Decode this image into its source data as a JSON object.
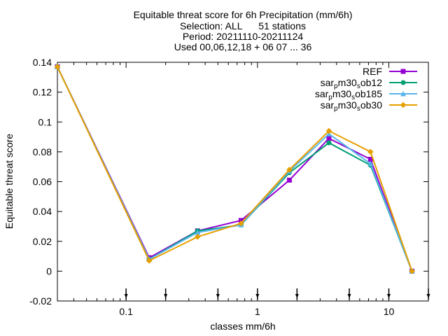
{
  "chart_data": {
    "type": "line",
    "title_lines": [
      "Equitable threat score  for 6h Precipitation (mm/6h)",
      "Selection: ALL      51 stations",
      "Period: 20211110-20211124",
      "Used 00,06,12,18 + 06 07 ... 36"
    ],
    "xlabel": "classes mm/6h",
    "ylabel": "Equitable threat score",
    "xscale": "log",
    "xlim": [
      0.03,
      20
    ],
    "ylim": [
      -0.02,
      0.14
    ],
    "xticks": [
      {
        "value": 0.1,
        "label": "0.1"
      },
      {
        "value": 1,
        "label": "1"
      },
      {
        "value": 10,
        "label": "10"
      }
    ],
    "yticks": [
      {
        "value": -0.02,
        "label": "-0.02"
      },
      {
        "value": 0,
        "label": "0"
      },
      {
        "value": 0.02,
        "label": "0.02"
      },
      {
        "value": 0.04,
        "label": "0.04"
      },
      {
        "value": 0.06,
        "label": "0.06"
      },
      {
        "value": 0.08,
        "label": "0.08"
      },
      {
        "value": 0.1,
        "label": "0.1"
      },
      {
        "value": 0.12,
        "label": "0.12"
      },
      {
        "value": 0.14,
        "label": "0.14"
      }
    ],
    "x": [
      0.03,
      0.15,
      0.35,
      0.75,
      1.75,
      3.5,
      7.25,
      15
    ],
    "threshold_marks_x": [
      0.1,
      0.2,
      0.5,
      1,
      2,
      5,
      10,
      20
    ],
    "legend_position": "top-right",
    "series": [
      {
        "name": "REF",
        "label_parts": [
          [
            "REF",
            "normal"
          ]
        ],
        "color": "#9400d3",
        "marker": "square",
        "values": [
          0.137,
          0.009,
          0.027,
          0.034,
          0.061,
          0.089,
          0.075,
          0.0
        ]
      },
      {
        "name": "sar_pm30_sob12",
        "label_parts": [
          [
            "sar",
            "normal"
          ],
          [
            "p",
            "sub"
          ],
          [
            "m30",
            "normal"
          ],
          [
            "s",
            "sub"
          ],
          [
            "ob12",
            "normal"
          ]
        ],
        "color": "#009e73",
        "marker": "circle",
        "values": [
          0.137,
          0.008,
          0.027,
          0.031,
          0.066,
          0.086,
          0.071,
          0.0
        ]
      },
      {
        "name": "sar_pm30_sob185",
        "label_parts": [
          [
            "sar",
            "normal"
          ],
          [
            "p",
            "sub"
          ],
          [
            "m30",
            "normal"
          ],
          [
            "s",
            "sub"
          ],
          [
            "ob185",
            "normal"
          ]
        ],
        "color": "#56b4e9",
        "marker": "triangle",
        "values": [
          0.137,
          0.008,
          0.026,
          0.031,
          0.067,
          0.092,
          0.072,
          0.0
        ]
      },
      {
        "name": "sar_pm30_sob30",
        "label_parts": [
          [
            "sar",
            "normal"
          ],
          [
            "p",
            "sub"
          ],
          [
            "m30",
            "normal"
          ],
          [
            "s",
            "sub"
          ],
          [
            "ob30",
            "normal"
          ]
        ],
        "color": "#e69f00",
        "marker": "diamond",
        "values": [
          0.137,
          0.007,
          0.023,
          0.032,
          0.068,
          0.094,
          0.08,
          0.0
        ]
      }
    ]
  }
}
